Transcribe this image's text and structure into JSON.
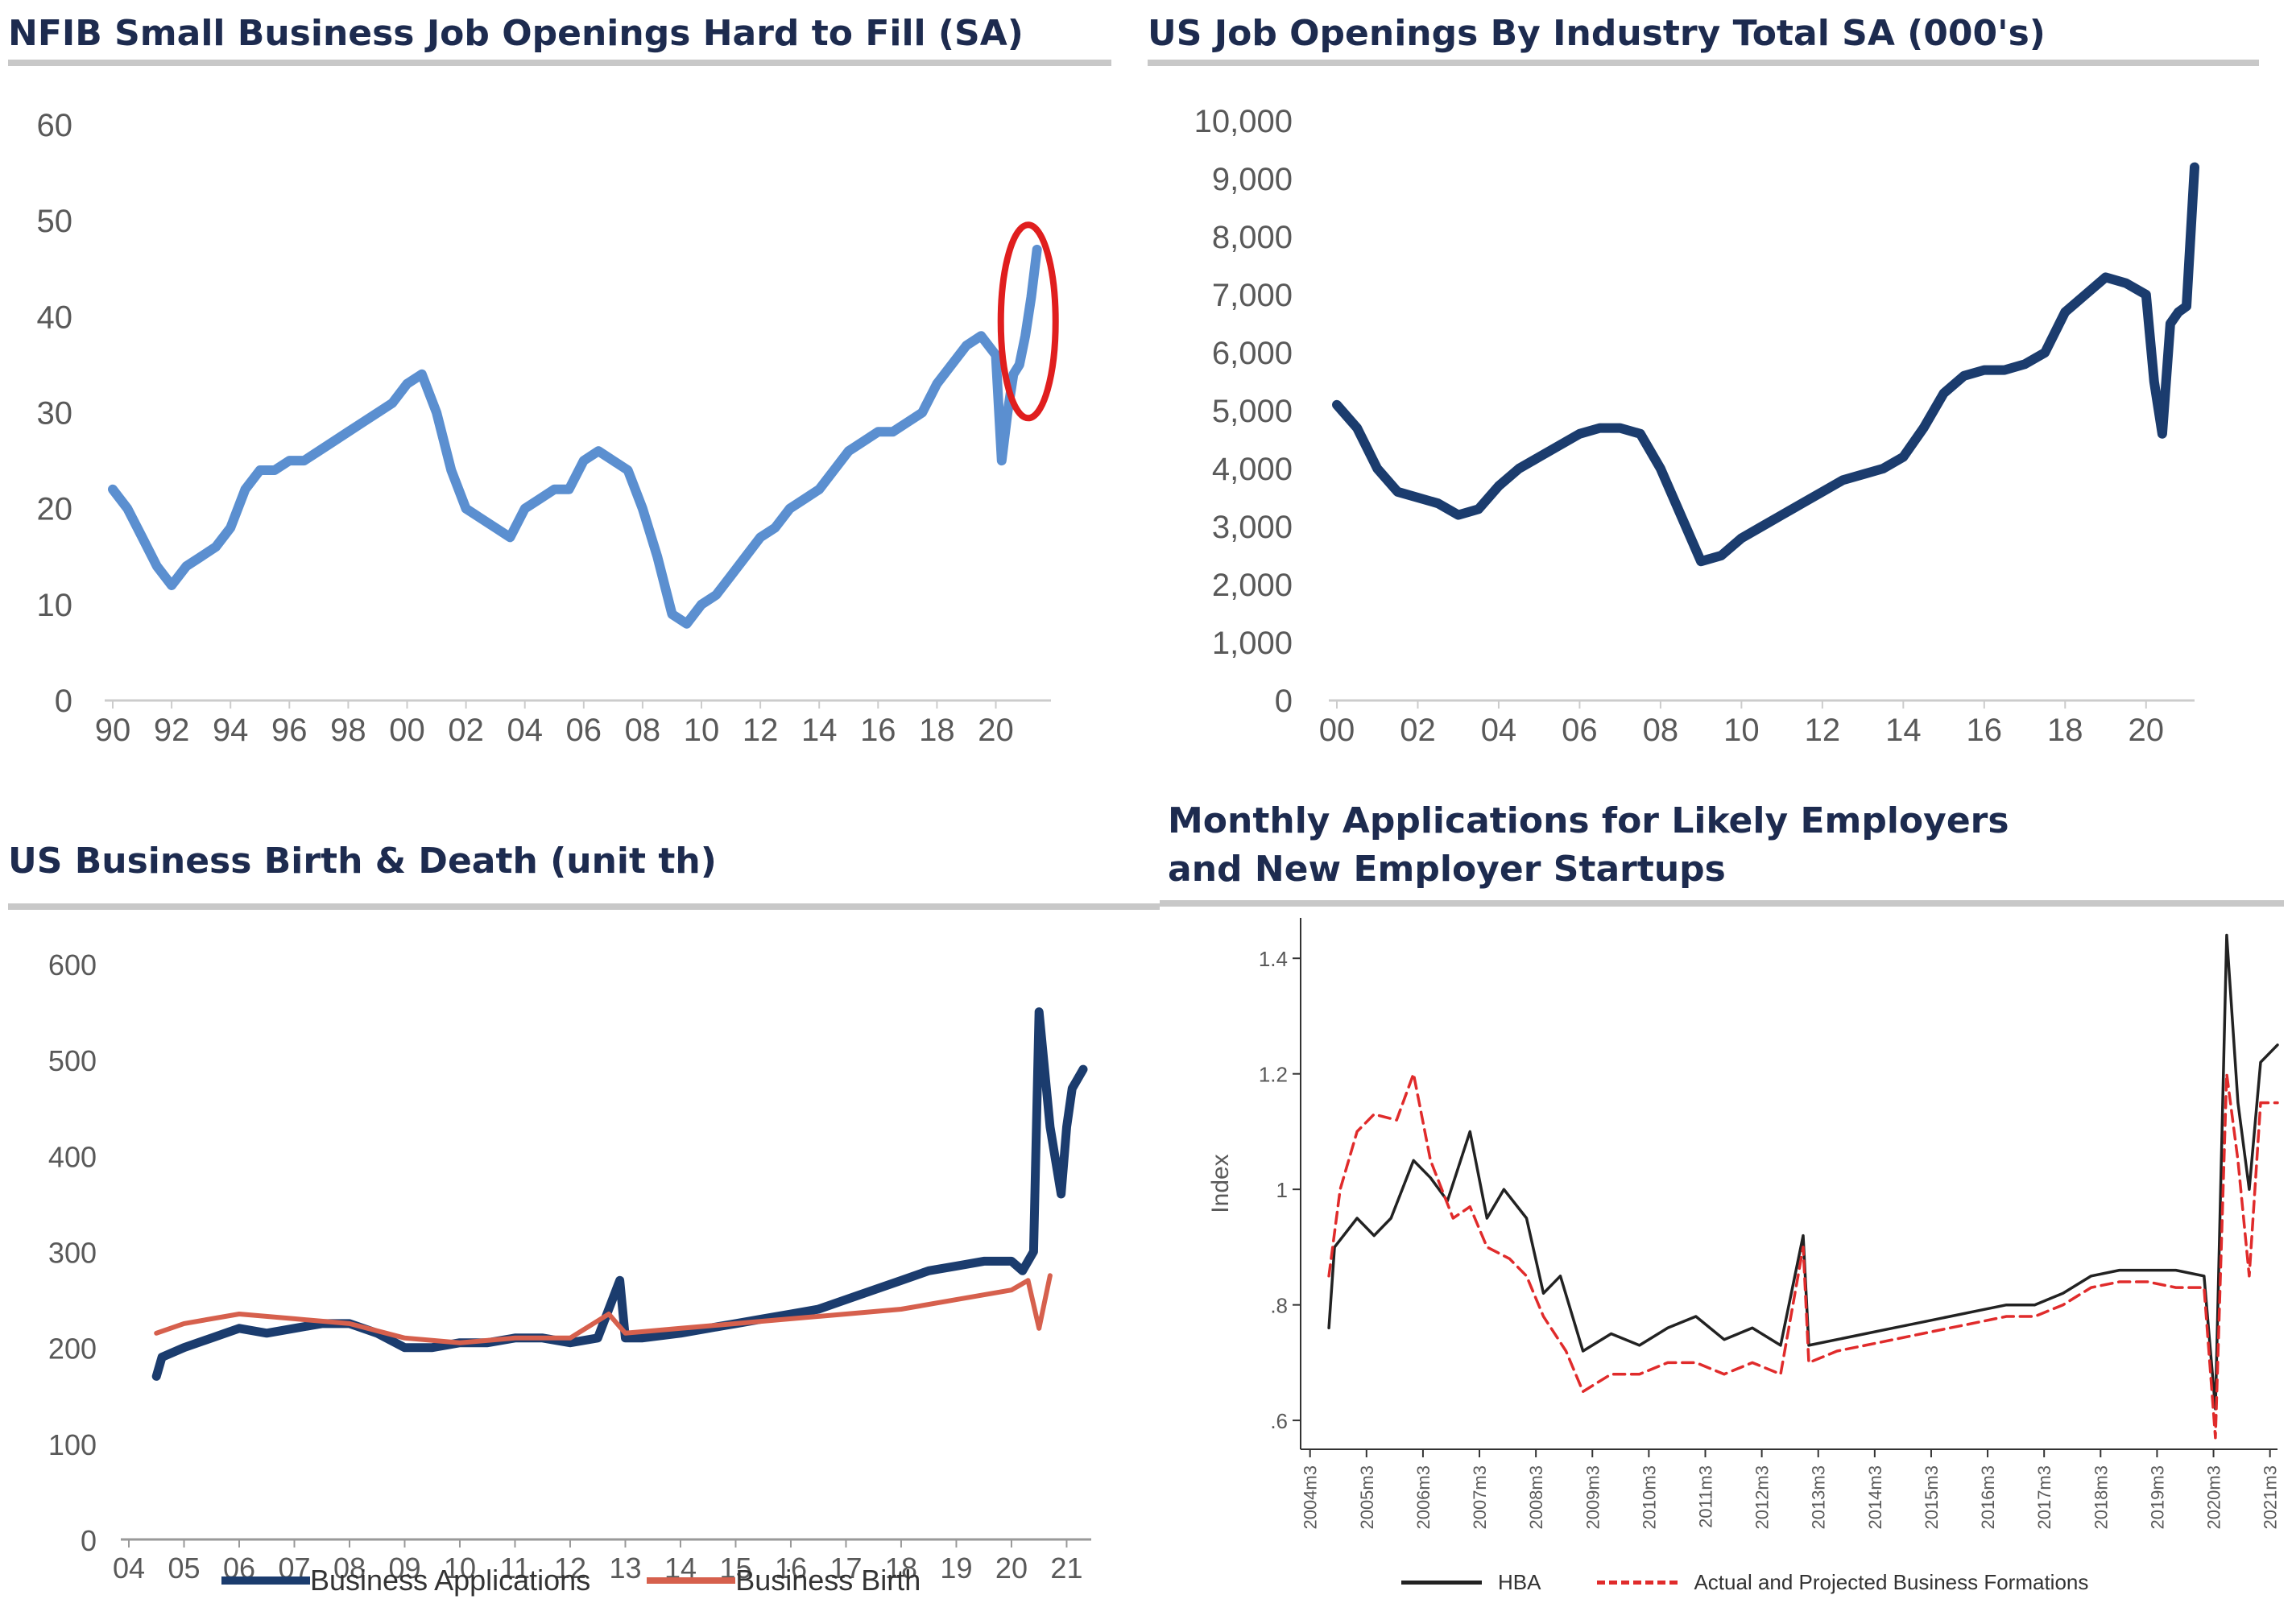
{
  "chart_data": [
    {
      "type": "line",
      "title": "NFIB Small Business Job Openings Hard to Fill (SA)",
      "x_tick_labels": [
        "90",
        "92",
        "94",
        "96",
        "98",
        "00",
        "02",
        "04",
        "06",
        "08",
        "10",
        "12",
        "14",
        "16",
        "18",
        "20"
      ],
      "y_tick_labels": [
        "0",
        "10",
        "20",
        "30",
        "40",
        "50",
        "60"
      ],
      "xlim": [
        1990,
        2021.6
      ],
      "ylim": [
        0,
        60
      ],
      "series": [
        {
          "color": "#5b8fd0",
          "x": [
            1990,
            1990.5,
            1991,
            1991.5,
            1992,
            1992.5,
            1993,
            1993.5,
            1994,
            1994.5,
            1995,
            1995.5,
            1996,
            1996.5,
            1997,
            1997.5,
            1998,
            1998.5,
            1999,
            1999.5,
            2000,
            2000.5,
            2001,
            2001.5,
            2002,
            2002.5,
            2003,
            2003.5,
            2004,
            2004.5,
            2005,
            2005.5,
            2006,
            2006.5,
            2007,
            2007.5,
            2008,
            2008.5,
            2009,
            2009.5,
            2010,
            2010.5,
            2011,
            2011.5,
            2012,
            2012.5,
            2013,
            2013.5,
            2014,
            2014.5,
            2015,
            2015.5,
            2016,
            2016.5,
            2017,
            2017.5,
            2018,
            2018.5,
            2019,
            2019.5,
            2020,
            2020.2,
            2020.4,
            2020.6,
            2020.8,
            2021,
            2021.2,
            2021.4
          ],
          "y": [
            22,
            20,
            17,
            14,
            12,
            14,
            15,
            16,
            18,
            22,
            24,
            24,
            25,
            25,
            26,
            27,
            28,
            29,
            30,
            31,
            33,
            34,
            30,
            24,
            20,
            19,
            18,
            17,
            20,
            21,
            22,
            22,
            25,
            26,
            25,
            24,
            20,
            15,
            9,
            8,
            10,
            11,
            13,
            15,
            17,
            18,
            20,
            21,
            22,
            24,
            26,
            27,
            28,
            28,
            29,
            30,
            33,
            35,
            37,
            38,
            36,
            25,
            30,
            34,
            35,
            38,
            42,
            47
          ]
        }
      ]
    },
    {
      "type": "line",
      "title": "US Job Openings By Industry Total SA (000's)",
      "x_tick_labels": [
        "00",
        "02",
        "04",
        "06",
        "08",
        "10",
        "12",
        "14",
        "16",
        "18",
        "20"
      ],
      "y_tick_labels": [
        "0",
        "1,000",
        "2,000",
        "3,000",
        "4,000",
        "5,000",
        "6,000",
        "7,000",
        "8,000",
        "9,000",
        "10,000"
      ],
      "xlim": [
        2000,
        2021
      ],
      "ylim": [
        0,
        10000
      ],
      "series": [
        {
          "color": "#1b3c6e",
          "x": [
            2000,
            2000.5,
            2001,
            2001.5,
            2002,
            2002.5,
            2003,
            2003.5,
            2004,
            2004.5,
            2005,
            2005.5,
            2006,
            2006.5,
            2007,
            2007.5,
            2008,
            2008.5,
            2009,
            2009.5,
            2010,
            2010.5,
            2011,
            2011.5,
            2012,
            2012.5,
            2013,
            2013.5,
            2014,
            2014.5,
            2015,
            2015.5,
            2016,
            2016.5,
            2017,
            2017.5,
            2018,
            2018.5,
            2019,
            2019.5,
            2020,
            2020.2,
            2020.4,
            2020.6,
            2020.8,
            2021,
            2021.2
          ],
          "y": [
            5100,
            4700,
            4000,
            3600,
            3500,
            3400,
            3200,
            3300,
            3700,
            4000,
            4200,
            4400,
            4600,
            4700,
            4700,
            4600,
            4000,
            3200,
            2400,
            2500,
            2800,
            3000,
            3200,
            3400,
            3600,
            3800,
            3900,
            4000,
            4200,
            4700,
            5300,
            5600,
            5700,
            5700,
            5800,
            6000,
            6700,
            7000,
            7300,
            7200,
            7000,
            5500,
            4600,
            6500,
            6700,
            6800,
            9200
          ]
        }
      ]
    },
    {
      "type": "line",
      "title": "US Business Birth & Death (unit th)",
      "x_tick_labels": [
        "04",
        "05",
        "06",
        "07",
        "08",
        "09",
        "10",
        "11",
        "12",
        "13",
        "14",
        "15",
        "16",
        "17",
        "18",
        "19",
        "20",
        "21"
      ],
      "y_tick_labels": [
        "0",
        "100",
        "200",
        "300",
        "400",
        "500",
        "600"
      ],
      "xlim": [
        2004,
        2021.3
      ],
      "ylim": [
        0,
        600
      ],
      "legend": {
        "position": "bottom"
      },
      "series": [
        {
          "name": "Business Applications",
          "color": "#1b3c6e",
          "x": [
            2004.5,
            2004.6,
            2005,
            2005.5,
            2006,
            2006.5,
            2007,
            2007.5,
            2008,
            2008.5,
            2009,
            2009.5,
            2010,
            2010.5,
            2011,
            2011.5,
            2012,
            2012.5,
            2012.9,
            2013,
            2013.3,
            2014,
            2014.5,
            2015,
            2015.5,
            2016,
            2016.5,
            2017,
            2017.5,
            2018,
            2018.5,
            2019,
            2019.5,
            2020,
            2020.2,
            2020.4,
            2020.5,
            2020.7,
            2020.9,
            2021,
            2021.1,
            2021.3
          ],
          "y": [
            170,
            190,
            200,
            210,
            220,
            215,
            220,
            225,
            225,
            215,
            200,
            200,
            205,
            205,
            210,
            210,
            205,
            210,
            270,
            210,
            210,
            215,
            220,
            225,
            230,
            235,
            240,
            250,
            260,
            270,
            280,
            285,
            290,
            290,
            280,
            300,
            550,
            430,
            360,
            430,
            470,
            490
          ]
        },
        {
          "name": "Business Birth",
          "color": "#d6604d",
          "x": [
            2004.5,
            2005,
            2006,
            2007,
            2008,
            2009,
            2010,
            2011,
            2012,
            2012.7,
            2013,
            2014,
            2015,
            2016,
            2017,
            2018,
            2019,
            2020,
            2020.3,
            2020.5,
            2020.7
          ],
          "y": [
            215,
            225,
            235,
            230,
            225,
            210,
            205,
            210,
            210,
            235,
            215,
            220,
            225,
            230,
            235,
            240,
            250,
            260,
            270,
            220,
            275
          ]
        }
      ]
    },
    {
      "type": "line",
      "title": "Monthly Applications for Likely Employers and New Employer Startups",
      "ylabel": "Index",
      "x_tick_labels": [
        "2004m3",
        "2005m3",
        "2006m3",
        "2007m3",
        "2008m3",
        "2009m3",
        "2010m3",
        "2011m3",
        "2012m3",
        "2013m3",
        "2014m3",
        "2015m3",
        "2016m3",
        "2017m3",
        "2018m3",
        "2019m3",
        "2020m3",
        "2021m3"
      ],
      "y_tick_labels": [
        ".6",
        ".8",
        "1",
        "1.2",
        "1.4"
      ],
      "xlim": [
        2004.0,
        2021.3
      ],
      "ylim": [
        0.55,
        1.47
      ],
      "legend": {
        "position": "bottom"
      },
      "series": [
        {
          "name": "HBA",
          "color": "#222222",
          "x": [
            2004.5,
            2004.6,
            2005,
            2005.3,
            2005.6,
            2006,
            2006.3,
            2006.6,
            2007,
            2007.3,
            2007.6,
            2008,
            2008.3,
            2008.6,
            2009,
            2009.5,
            2010,
            2010.5,
            2011,
            2011.5,
            2012,
            2012.5,
            2012.9,
            2013,
            2013.5,
            2014,
            2014.5,
            2015,
            2015.5,
            2016,
            2016.5,
            2017,
            2017.5,
            2018,
            2018.5,
            2019,
            2019.5,
            2020,
            2020.2,
            2020.4,
            2020.6,
            2020.8,
            2021,
            2021.3
          ],
          "y": [
            0.76,
            0.9,
            0.95,
            0.92,
            0.95,
            1.05,
            1.02,
            0.98,
            1.1,
            0.95,
            1.0,
            0.95,
            0.82,
            0.85,
            0.72,
            0.75,
            0.73,
            0.76,
            0.78,
            0.74,
            0.76,
            0.73,
            0.92,
            0.73,
            0.74,
            0.75,
            0.76,
            0.77,
            0.78,
            0.79,
            0.8,
            0.8,
            0.82,
            0.85,
            0.86,
            0.86,
            0.86,
            0.85,
            0.62,
            1.44,
            1.15,
            1.0,
            1.22,
            1.25
          ]
        },
        {
          "name": "Actual and Projected Business Formations",
          "color": "#e02b2b",
          "x": [
            2004.5,
            2004.7,
            2005,
            2005.3,
            2005.7,
            2006,
            2006.3,
            2006.7,
            2007,
            2007.3,
            2007.7,
            2008,
            2008.3,
            2008.7,
            2009,
            2009.5,
            2010,
            2010.5,
            2011,
            2011.5,
            2012,
            2012.5,
            2012.9,
            2013,
            2013.5,
            2014,
            2014.5,
            2015,
            2015.5,
            2016,
            2016.5,
            2017,
            2017.5,
            2018,
            2018.5,
            2019,
            2019.5,
            2020,
            2020.2,
            2020.4,
            2020.6,
            2020.8,
            2021,
            2021.3
          ],
          "y": [
            0.85,
            1.0,
            1.1,
            1.13,
            1.12,
            1.2,
            1.05,
            0.95,
            0.97,
            0.9,
            0.88,
            0.85,
            0.78,
            0.72,
            0.65,
            0.68,
            0.68,
            0.7,
            0.7,
            0.68,
            0.7,
            0.68,
            0.9,
            0.7,
            0.72,
            0.73,
            0.74,
            0.75,
            0.76,
            0.77,
            0.78,
            0.78,
            0.8,
            0.83,
            0.84,
            0.84,
            0.83,
            0.83,
            0.57,
            1.2,
            1.05,
            0.85,
            1.15,
            1.15
          ]
        }
      ]
    }
  ]
}
